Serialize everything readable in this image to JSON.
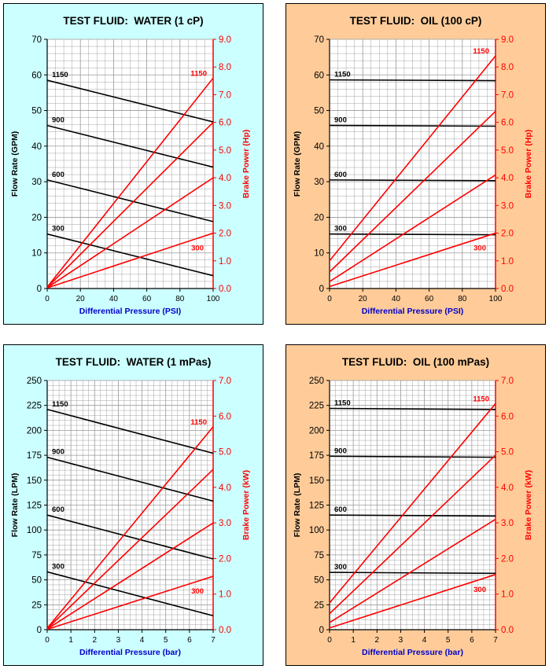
{
  "chart_data": [
    {
      "type": "line",
      "title": "TEST FLUID:  WATER (1 cP)",
      "xlabel": "Differential Pressure (PSI)",
      "ylabel": "Flow Rate (GPM)",
      "y2label": "Brake Power (Hp)",
      "xlim": [
        0,
        100
      ],
      "ylim": [
        0,
        70
      ],
      "y2lim": [
        0,
        9
      ],
      "xticks": [
        "0",
        "20",
        "40",
        "60",
        "80",
        "100"
      ],
      "yticks": [
        "0",
        "10",
        "20",
        "30",
        "40",
        "50",
        "60",
        "70"
      ],
      "y2ticks": [
        "0.0",
        "1.0",
        "2.0",
        "3.0",
        "4.0",
        "5.0",
        "6.0",
        "7.0",
        "8.0",
        "9.0"
      ],
      "grid": true,
      "flow_series": [
        {
          "name": "1150",
          "x": [
            0,
            100
          ],
          "y": [
            58.5,
            46.8
          ]
        },
        {
          "name": "900",
          "x": [
            0,
            100
          ],
          "y": [
            45.8,
            34.1
          ]
        },
        {
          "name": "600",
          "x": [
            0,
            100
          ],
          "y": [
            30.5,
            18.8
          ]
        },
        {
          "name": "300",
          "x": [
            0,
            100
          ],
          "y": [
            15.3,
            3.6
          ]
        }
      ],
      "power_series": [
        {
          "name": "1150",
          "x": [
            0,
            100
          ],
          "y": [
            0.05,
            7.6
          ]
        },
        {
          "name": "900",
          "x": [
            0,
            100
          ],
          "y": [
            0.04,
            6.0
          ]
        },
        {
          "name": "600",
          "x": [
            0,
            100
          ],
          "y": [
            0.03,
            4.0
          ]
        },
        {
          "name": "300",
          "x": [
            0,
            100
          ],
          "y": [
            0.02,
            2.0
          ]
        }
      ],
      "flow_labels": [
        "1150",
        "900",
        "600",
        "300"
      ],
      "power_labels": [
        "1150",
        "300"
      ]
    },
    {
      "type": "line",
      "title": "TEST FLUID:  OIL (100 cP)",
      "xlabel": "Differential Pressure (PSI)",
      "ylabel": "Flow Rate (GPM)",
      "y2label": "Brake Power (Hp)",
      "xlim": [
        0,
        100
      ],
      "ylim": [
        0,
        70
      ],
      "y2lim": [
        0,
        9
      ],
      "xticks": [
        "0",
        "20",
        "40",
        "60",
        "80",
        "100"
      ],
      "yticks": [
        "0",
        "10",
        "20",
        "30",
        "40",
        "50",
        "60",
        "70"
      ],
      "y2ticks": [
        "0.0",
        "1.0",
        "2.0",
        "3.0",
        "4.0",
        "5.0",
        "6.0",
        "7.0",
        "8.0",
        "9.0"
      ],
      "grid": true,
      "flow_series": [
        {
          "name": "1150",
          "x": [
            0,
            100
          ],
          "y": [
            58.6,
            58.4
          ]
        },
        {
          "name": "900",
          "x": [
            0,
            100
          ],
          "y": [
            45.8,
            45.6
          ]
        },
        {
          "name": "600",
          "x": [
            0,
            100
          ],
          "y": [
            30.5,
            30.3
          ]
        },
        {
          "name": "300",
          "x": [
            0,
            100
          ],
          "y": [
            15.3,
            15.1
          ]
        }
      ],
      "power_series": [
        {
          "name": "1150",
          "x": [
            0,
            100
          ],
          "y": [
            1.0,
            8.4
          ]
        },
        {
          "name": "900",
          "x": [
            0,
            100
          ],
          "y": [
            0.6,
            6.4
          ]
        },
        {
          "name": "600",
          "x": [
            0,
            100
          ],
          "y": [
            0.25,
            4.1
          ]
        },
        {
          "name": "300",
          "x": [
            0,
            100
          ],
          "y": [
            0.07,
            2.0
          ]
        }
      ],
      "flow_labels": [
        "1150",
        "900",
        "600",
        "300"
      ],
      "power_labels": [
        "1150",
        "300"
      ]
    },
    {
      "type": "line",
      "title": "TEST FLUID:  WATER (1 mPas)",
      "xlabel": "Differential Pressure (bar)",
      "ylabel": "Flow Rate (LPM)",
      "y2label": "Brake Power (kW)",
      "xlim": [
        0,
        7
      ],
      "ylim": [
        0,
        250
      ],
      "y2lim": [
        0,
        7
      ],
      "xticks": [
        "0",
        "1",
        "2",
        "3",
        "4",
        "5",
        "6",
        "7"
      ],
      "yticks": [
        "0",
        "25",
        "50",
        "75",
        "100",
        "125",
        "150",
        "175",
        "200",
        "225",
        "250"
      ],
      "y2ticks": [
        "0.0",
        "1.0",
        "2.0",
        "3.0",
        "4.0",
        "5.0",
        "6.0",
        "7.0"
      ],
      "grid": true,
      "flow_series": [
        {
          "name": "1150",
          "x": [
            0,
            7
          ],
          "y": [
            221,
            177
          ]
        },
        {
          "name": "900",
          "x": [
            0,
            7
          ],
          "y": [
            173,
            129
          ]
        },
        {
          "name": "600",
          "x": [
            0,
            7
          ],
          "y": [
            115,
            71
          ]
        },
        {
          "name": "300",
          "x": [
            0,
            7
          ],
          "y": [
            58,
            14
          ]
        }
      ],
      "power_series": [
        {
          "name": "1150",
          "x": [
            0,
            7
          ],
          "y": [
            0.04,
            5.7
          ]
        },
        {
          "name": "900",
          "x": [
            0,
            7
          ],
          "y": [
            0.03,
            4.5
          ]
        },
        {
          "name": "600",
          "x": [
            0,
            7
          ],
          "y": [
            0.02,
            3.0
          ]
        },
        {
          "name": "300",
          "x": [
            0,
            7
          ],
          "y": [
            0.01,
            1.5
          ]
        }
      ],
      "flow_labels": [
        "1150",
        "900",
        "600",
        "300"
      ],
      "power_labels": [
        "1150",
        "300"
      ]
    },
    {
      "type": "line",
      "title": "TEST FLUID:  OIL (100 mPas)",
      "xlabel": "Differential Pressure (bar)",
      "ylabel": "Flow Rate (LPM)",
      "y2label": "Brake Power (kW)",
      "xlim": [
        0,
        7
      ],
      "ylim": [
        0,
        250
      ],
      "y2lim": [
        0,
        7
      ],
      "xticks": [
        "0",
        "1",
        "2",
        "3",
        "4",
        "5",
        "6",
        "7"
      ],
      "yticks": [
        "0",
        "25",
        "50",
        "75",
        "100",
        "125",
        "150",
        "175",
        "200",
        "225",
        "250"
      ],
      "y2ticks": [
        "0.0",
        "1.0",
        "2.0",
        "3.0",
        "4.0",
        "5.0",
        "6.0",
        "7.0"
      ],
      "grid": true,
      "flow_series": [
        {
          "name": "1150",
          "x": [
            0,
            7
          ],
          "y": [
            222,
            221
          ]
        },
        {
          "name": "900",
          "x": [
            0,
            7
          ],
          "y": [
            174,
            173
          ]
        },
        {
          "name": "600",
          "x": [
            0,
            7
          ],
          "y": [
            115,
            114
          ]
        },
        {
          "name": "300",
          "x": [
            0,
            7
          ],
          "y": [
            57.5,
            56.5
          ]
        }
      ],
      "power_series": [
        {
          "name": "1150",
          "x": [
            0,
            7
          ],
          "y": [
            0.75,
            6.35
          ]
        },
        {
          "name": "900",
          "x": [
            0,
            7
          ],
          "y": [
            0.45,
            4.9
          ]
        },
        {
          "name": "600",
          "x": [
            0,
            7
          ],
          "y": [
            0.2,
            3.1
          ]
        },
        {
          "name": "300",
          "x": [
            0,
            7
          ],
          "y": [
            0.05,
            1.55
          ]
        }
      ],
      "flow_labels": [
        "1150",
        "900",
        "600",
        "300"
      ],
      "power_labels": [
        "1150",
        "300"
      ]
    }
  ],
  "colors": {
    "water_bg": "#ccffff",
    "oil_bg": "#ffcc99",
    "plot_bg": "#ffffff",
    "grid": "#9a9a9a",
    "flow_line": "#000000",
    "power_line": "#ff0000",
    "power_axis": "#ff0000",
    "axis_label_blue": "#0000cc"
  }
}
